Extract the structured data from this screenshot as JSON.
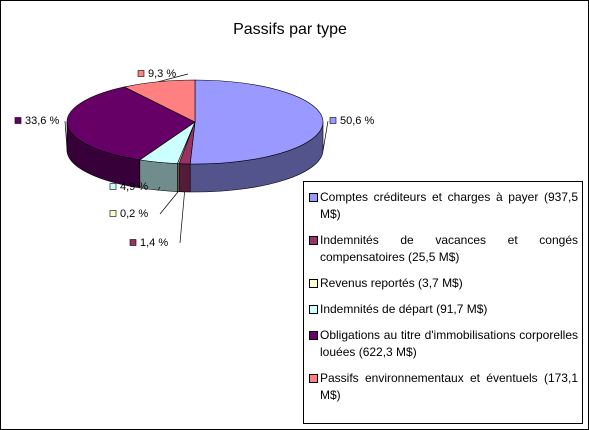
{
  "chart_data": {
    "type": "pie3d",
    "title": "Passifs par type",
    "categories": [
      "Comptes créditeurs et charges à payer (937,5 M$)",
      "Indemnités de vacances et congés compensatoires (25,5 M$)",
      "Revenus reportés (3,7 M$)",
      "Indemnités de départ (91,7 M$)",
      "Obligations au titre d'immobilisations corporelles louées (622,3 M$)",
      "Passifs environnementaux et éventuels (173,1 M$)"
    ],
    "values": [
      50.6,
      1.4,
      0.2,
      4.9,
      33.6,
      9.3
    ],
    "value_labels": [
      "50,6 %",
      "1,4 %",
      "0,2 %",
      "4,9 %",
      "33,6 %",
      "9,3 %"
    ],
    "colors": [
      "#9999ff",
      "#993366",
      "#ffffcc",
      "#ccffff",
      "#660066",
      "#ff8080"
    ]
  }
}
